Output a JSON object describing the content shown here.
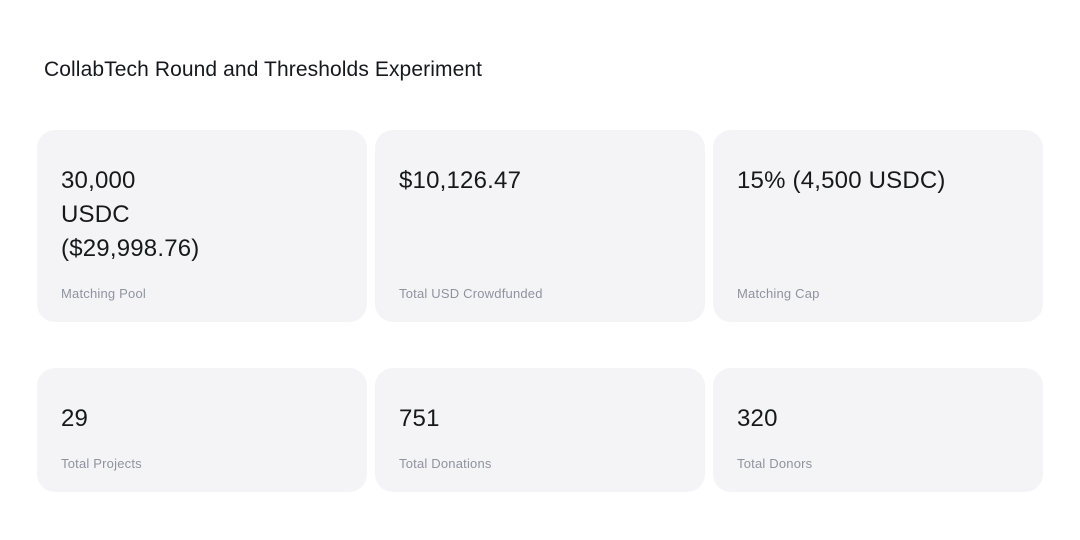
{
  "page": {
    "title": "CollabTech Round and Thresholds Experiment"
  },
  "colors": {
    "background": "#ffffff",
    "card_background": "#f4f4f6",
    "value_text": "#17181c",
    "label_text": "#8f93a0"
  },
  "stats": {
    "top_row": [
      {
        "value": "30,000\nUSDC\n($29,998.76)",
        "label": "Matching Pool"
      },
      {
        "value": "$10,126.47",
        "label": "Total USD Crowdfunded"
      },
      {
        "value": "15% (4,500 USDC)",
        "label": "Matching Cap"
      }
    ],
    "bottom_row": [
      {
        "value": "29",
        "label": "Total Projects"
      },
      {
        "value": "751",
        "label": "Total Donations"
      },
      {
        "value": "320",
        "label": "Total Donors"
      }
    ]
  }
}
